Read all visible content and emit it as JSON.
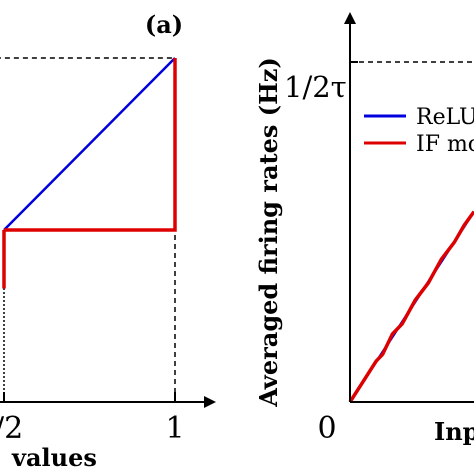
{
  "chart_data": [
    {
      "panel_label": "(a)",
      "type": "line",
      "xlabel": "values",
      "ylabel": "",
      "x_tick_labels": [
        "/2",
        "1"
      ],
      "xlim": [
        0.45,
        1.1
      ],
      "ylim": [
        0,
        1.07
      ],
      "grid": false,
      "colors": {
        "blue_series": "#0000dd",
        "red_series": "#dd0000"
      },
      "series": [
        {
          "color": "blue",
          "points": [
            [
              0.5,
              0.5
            ],
            [
              1.0,
              1.0
            ]
          ]
        },
        {
          "color": "red",
          "points": [
            [
              0.5,
              0.5
            ],
            [
              1.0,
              0.5
            ],
            [
              1.0,
              1.0
            ]
          ]
        },
        {
          "color": "red",
          "points": [
            [
              0.5,
              0.33
            ],
            [
              0.5,
              0.5
            ]
          ]
        }
      ],
      "reference_lines": [
        {
          "style": "dashed",
          "y": 1.0,
          "from_x": 0.45,
          "to_x": 1.0
        },
        {
          "style": "dashed",
          "x": 1.0,
          "from_y": 0,
          "to_y": 0.5
        },
        {
          "style": "dotted",
          "x": 0.5,
          "from_y": 0,
          "to_y": 0.33
        }
      ]
    },
    {
      "type": "line",
      "xlabel": "Inp",
      "ylabel": "Averaged firing rates (Hz)",
      "y_tick_labels": [
        "1/2τ"
      ],
      "x_tick_labels": [
        "0"
      ],
      "legend": {
        "placement": "top-right",
        "entries": [
          "ReLU",
          "IF mo"
        ]
      },
      "xlim": [
        0,
        0.38
      ],
      "ylim": [
        0,
        1.07
      ],
      "grid": false,
      "colors": {
        "relu": "#0000dd",
        "if_model": "#dd0000"
      },
      "series": [
        {
          "name": "ReLU",
          "color": "blue",
          "points": [
            [
              0.0,
              0.0
            ],
            [
              0.38,
              0.56
            ]
          ]
        },
        {
          "name": "IF mo",
          "color": "red",
          "points": [
            [
              0.0,
              0.0
            ],
            [
              0.04,
              0.06
            ],
            [
              0.08,
              0.12
            ],
            [
              0.1,
              0.14
            ],
            [
              0.13,
              0.2
            ],
            [
              0.16,
              0.23
            ],
            [
              0.2,
              0.3
            ],
            [
              0.24,
              0.35
            ],
            [
              0.28,
              0.42
            ],
            [
              0.32,
              0.47
            ],
            [
              0.35,
              0.52
            ],
            [
              0.38,
              0.56
            ]
          ]
        }
      ],
      "reference_lines": [
        {
          "style": "dashed",
          "y": 1.0,
          "from_x": 0.0,
          "to_x": 0.38
        }
      ]
    }
  ]
}
